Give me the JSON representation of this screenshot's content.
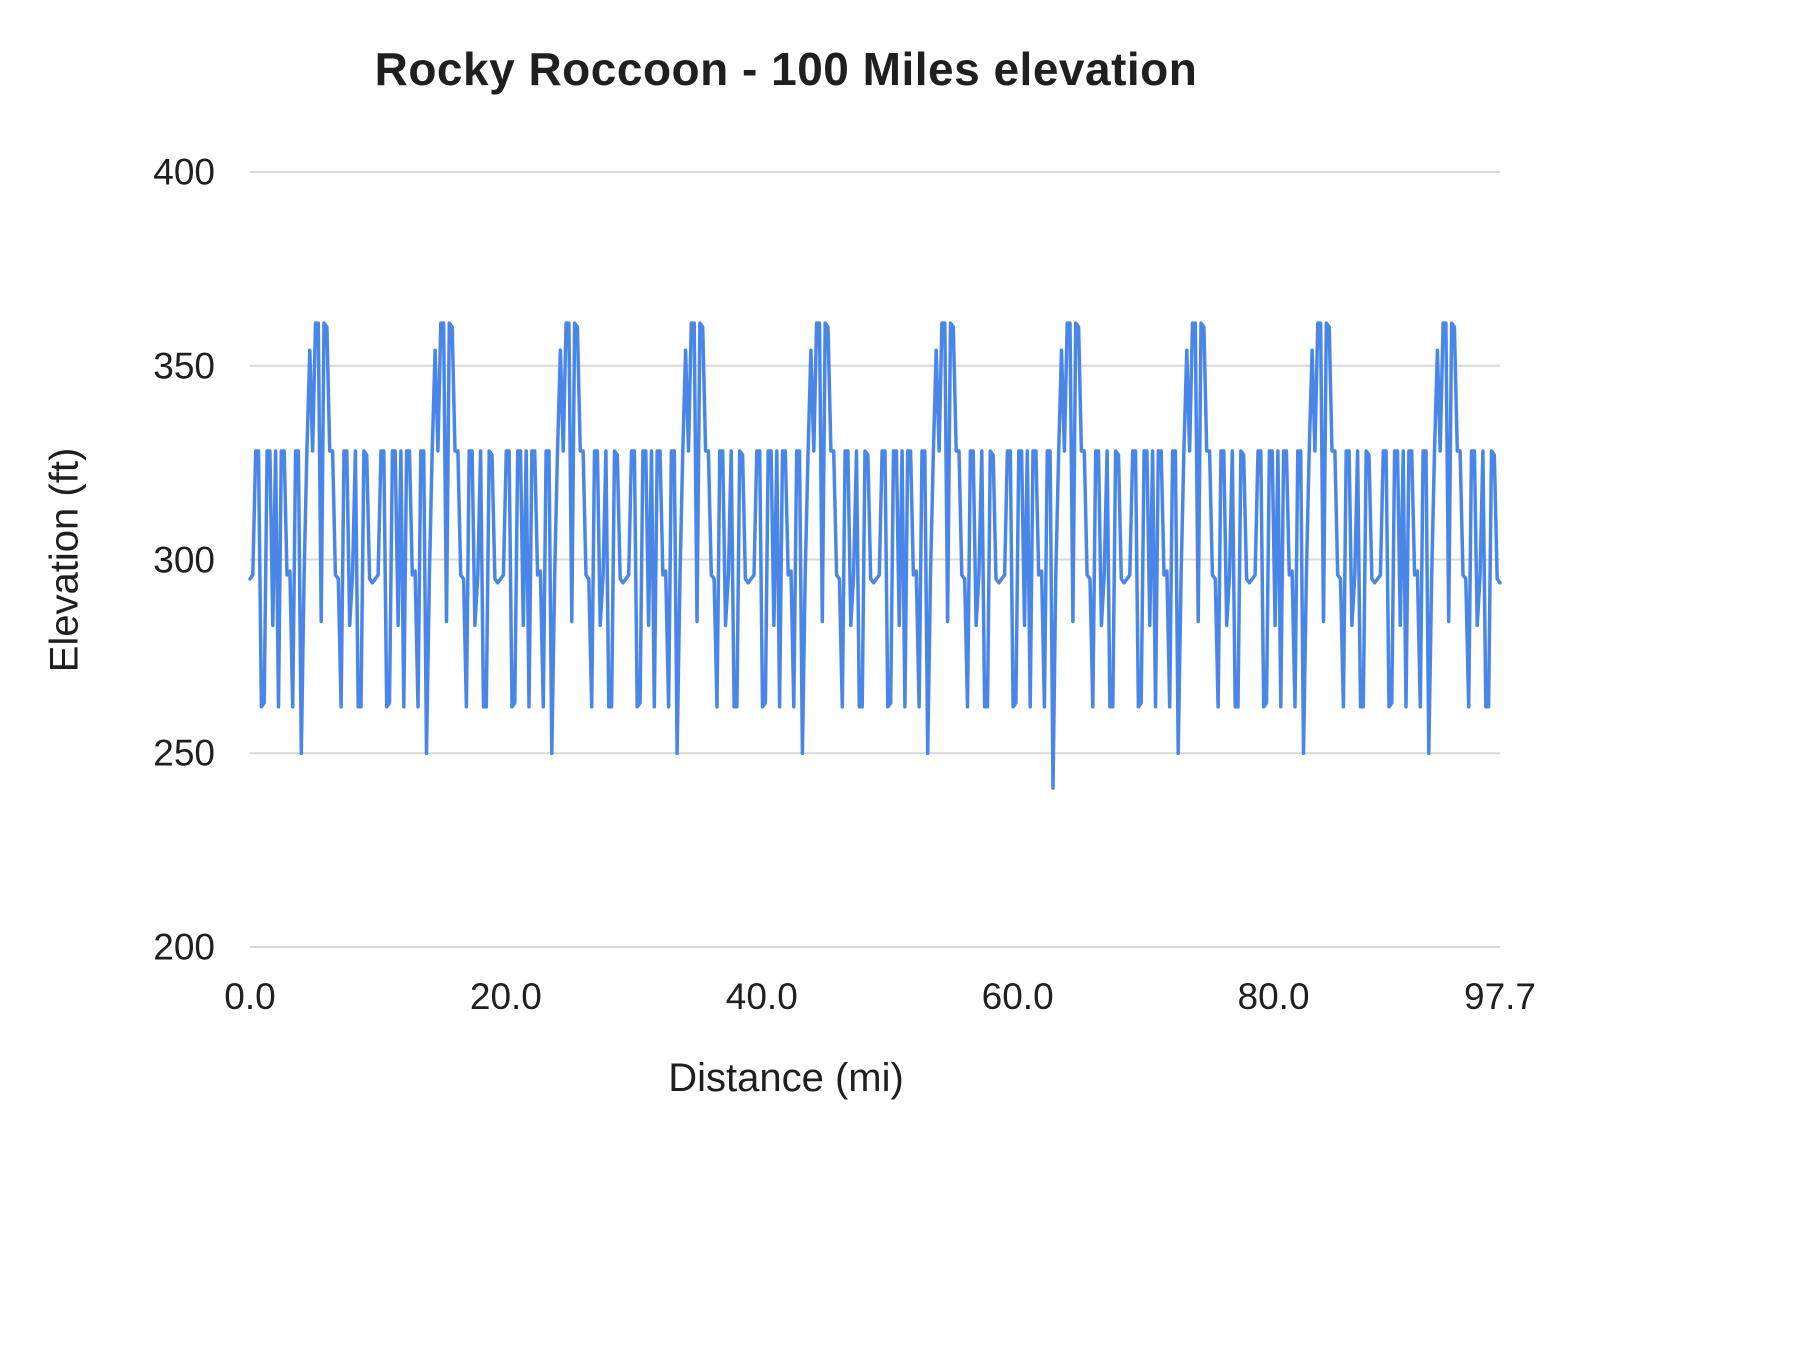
{
  "chart_data": {
    "type": "line",
    "title": "Rocky Roccoon - 100 Miles elevation",
    "xlabel": "Distance (mi)",
    "ylabel": "Elevation (ft)",
    "xlim": [
      0,
      97.7
    ],
    "ylim": [
      200,
      400
    ],
    "grid": true,
    "legend": "none",
    "line_color": "#4a86e8",
    "gridline_color": "#d9d9d9",
    "text_color": "#1f1f1f",
    "x_ticks": [
      {
        "label": "0.0",
        "value": 0
      },
      {
        "label": "20.0",
        "value": 20
      },
      {
        "label": "40.0",
        "value": 40
      },
      {
        "label": "60.0",
        "value": 60
      },
      {
        "label": "80.0",
        "value": 80
      },
      {
        "label": "97.7",
        "value": 97.7
      }
    ],
    "y_ticks": [
      {
        "label": "400",
        "value": 400
      },
      {
        "label": "350",
        "value": 350
      },
      {
        "label": "300",
        "value": 300
      },
      {
        "label": "250",
        "value": 250
      },
      {
        "label": "200",
        "value": 200
      }
    ],
    "series_name": "Elevation",
    "loops": 10,
    "loop_pattern": [
      295,
      296,
      328,
      328,
      262,
      263,
      328,
      328,
      283,
      328,
      262,
      328,
      328,
      296,
      297,
      262,
      328,
      328,
      250,
      296,
      328,
      354,
      328,
      361,
      361,
      284,
      361,
      360,
      328,
      328,
      296,
      295,
      262,
      328,
      328,
      283,
      296,
      328,
      262,
      262,
      328,
      327,
      295,
      294
    ],
    "deep_dip": {
      "loop_index": 6,
      "replaces_value": 250,
      "value": 241
    }
  }
}
